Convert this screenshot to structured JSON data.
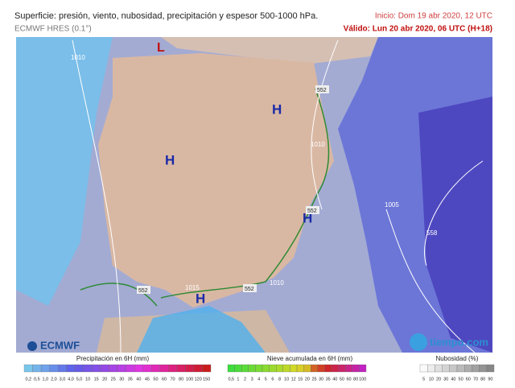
{
  "header": {
    "title": "Superficie: presión, viento, nubosidad, precipitación y espesor 500-1000 hPa.",
    "model": "ECMWF HRES (0.1°)",
    "start": "Inicio: Dom 19 abr 2020, 12 UTC",
    "valid": "Válido: Lun 20 abr 2020, 06 UTC (H+18)"
  },
  "map": {
    "lows": [
      "L"
    ],
    "highs": [
      "H",
      "H",
      "H",
      "H"
    ],
    "isobars": [
      "1010",
      "1010",
      "1005",
      "1015",
      "1010"
    ],
    "thickness": [
      "552",
      "552",
      "552",
      "552",
      "558"
    ]
  },
  "legend": {
    "logo": "ECMWF",
    "brand": "tiempo.com",
    "precipitation": {
      "title": "Precipitación en 6H (mm)",
      "ticks": [
        "0,2",
        "0,5",
        "1,0",
        "2,0",
        "3,0",
        "4,0",
        "5,0",
        "10",
        "15",
        "20",
        "25",
        "30",
        "35",
        "40",
        "45",
        "50",
        "60",
        "70",
        "80",
        "100",
        "120",
        "150"
      ]
    },
    "snow": {
      "title": "Nieve acumulada en 6H (mm)",
      "ticks": [
        "0,5",
        "1",
        "2",
        "3",
        "4",
        "5",
        "6",
        "8",
        "10",
        "12",
        "15",
        "20",
        "25",
        "30",
        "35",
        "40",
        "50",
        "60",
        "80",
        "100"
      ]
    },
    "cloud": {
      "title": "Nubosidad (%)",
      "ticks": [
        "5",
        "10",
        "20",
        "30",
        "40",
        "50",
        "60",
        "70",
        "80",
        "90"
      ]
    }
  }
}
